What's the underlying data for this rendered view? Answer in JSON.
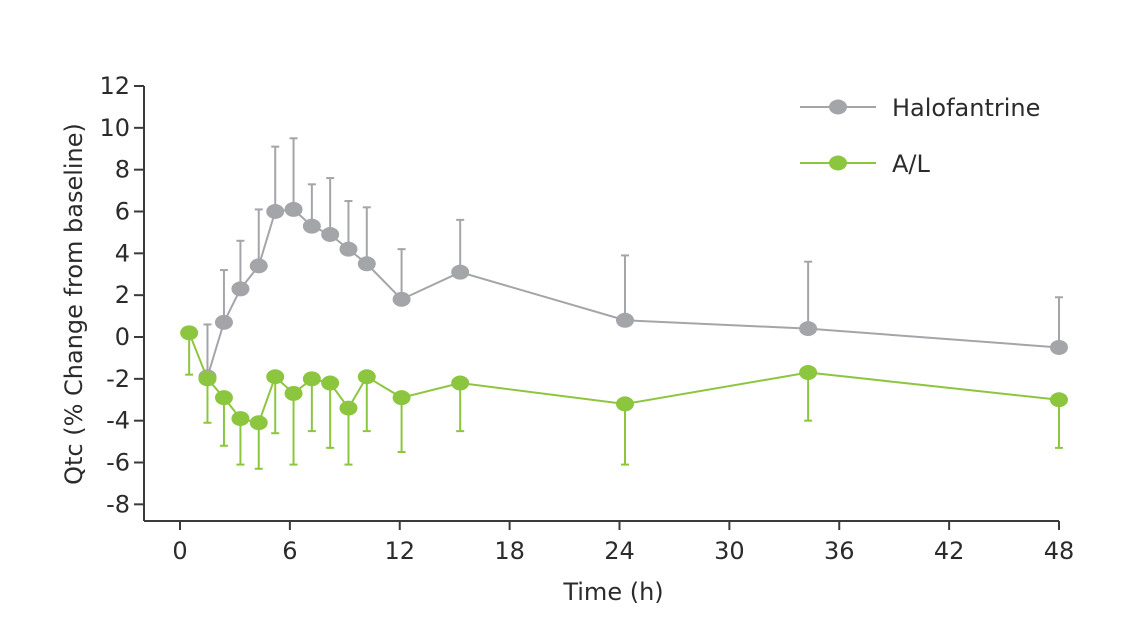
{
  "chart_data": {
    "type": "line",
    "title": "",
    "xlabel": "Time (h)",
    "ylabel": "Qtc (% Change from baseline)",
    "xlim": [
      -2,
      48
    ],
    "ylim": [
      -9,
      12
    ],
    "xticks": [
      0,
      6,
      12,
      18,
      24,
      30,
      36,
      42,
      48
    ],
    "xtick_labels": [
      "0",
      "6",
      "12",
      "18",
      "24",
      "30",
      "36",
      "42",
      "48"
    ],
    "yticks": [
      12,
      10,
      8,
      6,
      4,
      2,
      0,
      -2,
      -4,
      -6,
      -8
    ],
    "ytick_labels": [
      "12",
      "10",
      "8",
      "6",
      "4",
      "2",
      "0",
      "-2",
      "-4",
      "-6",
      "-8"
    ],
    "grid": false,
    "legend_position": "top-right",
    "series": [
      {
        "name": "Halofantrine",
        "color": "#a3a5a8",
        "error_direction": "up",
        "x": [
          1.5,
          2.4,
          3.3,
          4.3,
          5.2,
          6.2,
          7.2,
          8.2,
          9.2,
          10.2,
          12.1,
          15.3,
          24.3,
          34.3,
          48
        ],
        "y": [
          -1.9,
          0.7,
          2.3,
          3.4,
          6.0,
          6.1,
          5.3,
          4.9,
          4.2,
          3.5,
          1.8,
          3.1,
          0.8,
          0.4,
          -0.5
        ],
        "error": [
          2.5,
          2.5,
          2.3,
          2.7,
          3.1,
          3.4,
          2.0,
          2.7,
          2.3,
          2.7,
          2.4,
          2.5,
          3.1,
          3.2,
          2.4
        ]
      },
      {
        "name": "A/L",
        "color": "#8cc63f",
        "error_direction": "down",
        "x": [
          0.5,
          1.5,
          2.4,
          3.3,
          4.3,
          5.2,
          6.2,
          7.2,
          8.2,
          9.2,
          10.2,
          12.1,
          15.3,
          24.3,
          34.3,
          48
        ],
        "y": [
          0.2,
          -2.0,
          -2.9,
          -3.9,
          -4.1,
          -1.9,
          -2.7,
          -2.0,
          -2.2,
          -3.4,
          -1.9,
          -2.9,
          -2.2,
          -3.2,
          -1.7,
          -3.0
        ],
        "error": [
          2.0,
          2.1,
          2.3,
          2.2,
          2.2,
          2.7,
          3.4,
          2.5,
          3.1,
          2.7,
          2.6,
          2.6,
          2.3,
          2.9,
          2.3,
          2.3
        ]
      }
    ]
  }
}
